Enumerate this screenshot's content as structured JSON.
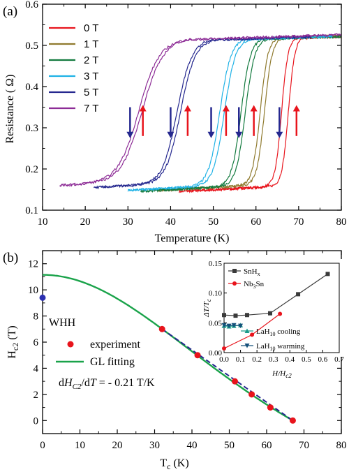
{
  "chart_data": [
    {
      "panel_label": "(a)",
      "type": "line",
      "xlabel": "Temperature (K)",
      "ylabel": "Resistance ( Ω)",
      "xlim": [
        10,
        80
      ],
      "ylim": [
        0.1,
        0.6
      ],
      "xticks": [
        "10",
        "20",
        "30",
        "40",
        "50",
        "60",
        "70",
        "80"
      ],
      "yticks": [
        "0.1",
        "0.2",
        "0.3",
        "0.4",
        "0.5",
        "0.6"
      ],
      "legend_position": "top-left",
      "series": [
        {
          "name": "0 T",
          "color": "#e8141c",
          "tc_cool": 66.0,
          "tc_warm": 67.6,
          "t_min": 42,
          "t_max": 80,
          "r_low": 0.145,
          "r_high": 0.505,
          "width": 0.75
        },
        {
          "name": "1 T",
          "color": "#8f7a2e",
          "tc_cool": 61.0,
          "tc_warm": 62.0,
          "t_min": 37,
          "t_max": 80,
          "r_low": 0.148,
          "r_high": 0.505,
          "width": 0.9
        },
        {
          "name": "2 T",
          "color": "#127a3e",
          "tc_cool": 56.5,
          "tc_warm": 57.5,
          "t_min": 33,
          "t_max": 80,
          "r_low": 0.146,
          "r_high": 0.502,
          "width": 1.1
        },
        {
          "name": "3 T",
          "color": "#1fb2e6",
          "tc_cool": 51.5,
          "tc_warm": 52.6,
          "t_min": 30,
          "t_max": 78,
          "r_low": 0.148,
          "r_high": 0.502,
          "width": 1.3
        },
        {
          "name": "5 T",
          "color": "#25288f",
          "tc_cool": 41.5,
          "tc_warm": 42.3,
          "t_min": 22,
          "t_max": 73,
          "r_low": 0.155,
          "r_high": 0.5,
          "width": 1.7
        },
        {
          "name": "7 T",
          "color": "#8d2c96",
          "tc_cool": 32.5,
          "tc_warm": 33.3,
          "t_min": 14,
          "t_max": 80,
          "r_low": 0.16,
          "r_high": 0.5,
          "width": 2.4
        }
      ],
      "arrows": [
        {
          "x": 30.5,
          "dir": "down",
          "color": "#25288f"
        },
        {
          "x": 33.5,
          "dir": "up",
          "color": "#e8141c"
        },
        {
          "x": 40.0,
          "dir": "down",
          "color": "#25288f"
        },
        {
          "x": 44.0,
          "dir": "up",
          "color": "#e8141c"
        },
        {
          "x": 49.5,
          "dir": "down",
          "color": "#25288f"
        },
        {
          "x": 53.0,
          "dir": "up",
          "color": "#e8141c"
        },
        {
          "x": 56.0,
          "dir": "down",
          "color": "#25288f"
        },
        {
          "x": 59.5,
          "dir": "up",
          "color": "#e8141c"
        },
        {
          "x": 65.5,
          "dir": "down",
          "color": "#25288f"
        },
        {
          "x": 69.5,
          "dir": "up",
          "color": "#e8141c"
        }
      ],
      "arrow_y_range": [
        0.28,
        0.35
      ]
    },
    {
      "panel_label": "(b)",
      "type": "scatter",
      "xlabel": "T c (K)",
      "xlabel_main": "T",
      "xlabel_sub": "c",
      "xlabel_tail": " (K)",
      "ylabel_main": "H",
      "ylabel_sub": "c2",
      "ylabel_tail": " (T)",
      "xlim": [
        0,
        80
      ],
      "ylim": [
        -1,
        13
      ],
      "xticks": [
        "0",
        "10",
        "20",
        "30",
        "40",
        "50",
        "60",
        "70",
        "80"
      ],
      "yticks": [
        "0",
        "2",
        "4",
        "6",
        "8",
        "10",
        "12"
      ],
      "experiment": {
        "name": "experiment",
        "color": "#e8141c",
        "x": [
          67.0,
          61.0,
          56.0,
          51.5,
          41.5,
          32.0
        ],
        "y": [
          0.0,
          1.0,
          2.0,
          3.0,
          5.0,
          7.0
        ]
      },
      "gl_fit": {
        "name": "GL fitting",
        "color": "#1aa34a",
        "hc2_0": 11.15,
        "tc": 67.0
      },
      "slope_line": {
        "color": "#25288f",
        "x": [
          32.0,
          67.0
        ],
        "y": [
          7.0,
          0.0
        ]
      },
      "whh": {
        "label": "WHH",
        "x": 0,
        "y": 9.4,
        "color": "#2b2fb0"
      },
      "annotation": {
        "pre": "d",
        "var": "H",
        "sub": "C2",
        "mid": "/d",
        "var2": "T",
        "post": " = - 0.21 T/K"
      },
      "inset": {
        "xlabel_main": "H",
        "xlabel_tail": "/",
        "xlabel_main2": "H",
        "xlabel_sub2": "c2",
        "ylabel_main": "ΔT/T",
        "ylabel_sub": "c",
        "xlim": [
          0.0,
          0.7
        ],
        "ylim": [
          0.0,
          0.15
        ],
        "xticks": [
          "0.0",
          "0.1",
          "0.2",
          "0.3",
          "0.4",
          "0.5",
          "0.6",
          "0.7"
        ],
        "yticks": [
          "0.00",
          "0.05",
          "0.10",
          "0.15"
        ],
        "series": [
          {
            "name_main": "SnH",
            "name_sub": "x",
            "color": "#3a3a3a",
            "marker": "square",
            "x": [
              0.0,
              0.07,
              0.14,
              0.28,
              0.45,
              0.63
            ],
            "y": [
              0.063,
              0.062,
              0.063,
              0.066,
              0.098,
              0.132
            ]
          },
          {
            "name_main": "Nb",
            "name_sub": "3",
            "name_tail": "Sn",
            "color": "#e8141c",
            "marker": "circle",
            "x": [
              0.0,
              0.17,
              0.34
            ],
            "y": [
              0.007,
              0.03,
              0.065
            ]
          },
          {
            "name_main": "LaH",
            "name_sub": "10",
            "name_tail": " cooling",
            "color": "#1a9a8a",
            "marker": "triangle-up",
            "x": [
              0.0,
              0.03,
              0.06,
              0.1
            ],
            "y": [
              0.045,
              0.044,
              0.045,
              0.046
            ]
          },
          {
            "name_main": "LaH",
            "name_sub": "10",
            "name_tail": " warming",
            "color": "#14507a",
            "marker": "triangle-down",
            "x": [
              0.0,
              0.03,
              0.06,
              0.1
            ],
            "y": [
              0.046,
              0.045,
              0.046,
              0.045
            ]
          }
        ]
      }
    }
  ]
}
